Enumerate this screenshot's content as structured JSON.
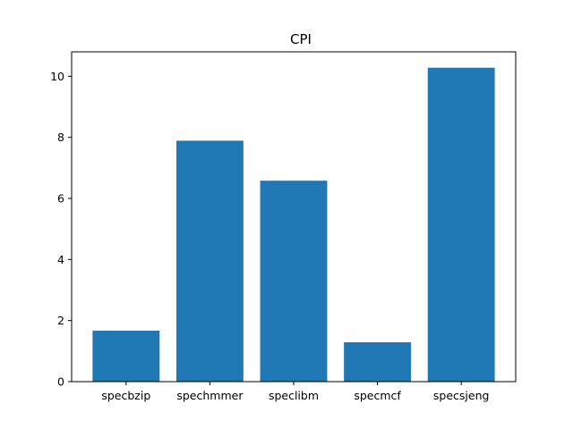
{
  "chart_data": {
    "type": "bar",
    "title": "CPI",
    "xlabel": "",
    "ylabel": "",
    "categories": [
      "specbzip",
      "spechmmer",
      "speclibm",
      "specmcf",
      "specsjeng"
    ],
    "values": [
      1.67,
      7.89,
      6.58,
      1.29,
      10.28
    ],
    "ylim": [
      0,
      10.8
    ],
    "yticks": [
      0,
      2,
      4,
      6,
      8,
      10
    ],
    "bar_color": "#1f77b4",
    "grid": false,
    "legend": "none"
  }
}
